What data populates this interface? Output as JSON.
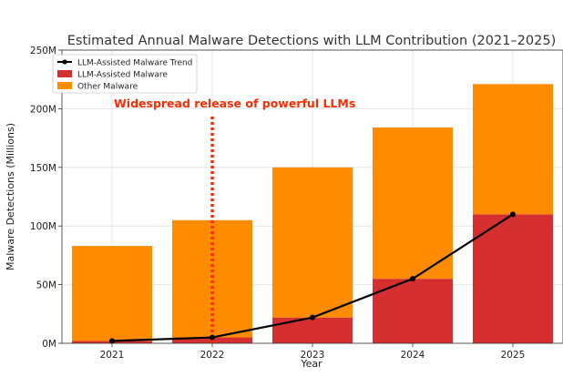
{
  "chart_data": {
    "type": "bar",
    "title": "Estimated Annual Malware Detections with LLM Contribution (2021–2025)",
    "xlabel": "Year",
    "ylabel": "Malware Detections (Millions)",
    "categories": [
      "2021",
      "2022",
      "2023",
      "2024",
      "2025"
    ],
    "ylim": [
      0,
      250
    ],
    "yticks": [
      0,
      50,
      100,
      150,
      200,
      250
    ],
    "ytick_labels": [
      "0M",
      "50M",
      "100M",
      "150M",
      "200M",
      "250M"
    ],
    "stacked": true,
    "grid": true,
    "legend_position": "top-left",
    "series": [
      {
        "name": "LLM-Assisted Malware",
        "kind": "bar",
        "color": "#d62f2f",
        "values": [
          2,
          5,
          22,
          55,
          110
        ]
      },
      {
        "name": "Other Malware",
        "kind": "bar",
        "color": "#ff8c00",
        "values": [
          81,
          100,
          128,
          129,
          111
        ]
      },
      {
        "name": "LLM-Assisted Malware Trend",
        "kind": "line",
        "color": "#000000",
        "values": [
          2,
          5,
          22,
          55,
          110
        ]
      }
    ],
    "annotation": {
      "text": "Widespread release of powerful LLMs",
      "color": "#ff2a00",
      "x": "2022",
      "y_from": 0,
      "y_to": 195
    }
  }
}
